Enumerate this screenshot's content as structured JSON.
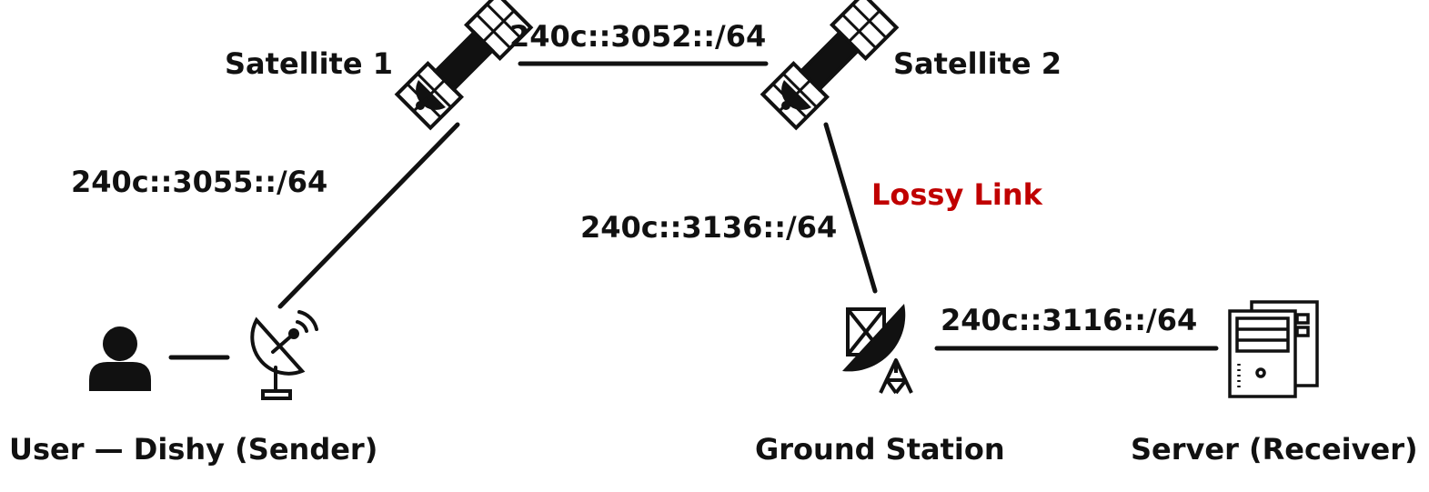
{
  "nodes": {
    "satellite_1": "Satellite 1",
    "satellite_2": "Satellite 2",
    "user_dishy": "User — Dishy (Sender)",
    "ground_station": "Ground Station",
    "server": "Server (Receiver)"
  },
  "links": {
    "sat1_sat2": "240c::3052::/64",
    "dishy_sat1": "240c::3055::/64",
    "sat2_ground": "240c::3136::/64",
    "ground_server": "240c::3116::/64",
    "lossy_note": "Lossy Link"
  },
  "colors": {
    "ink": "#111111",
    "lossy": "#c00000"
  },
  "icons": [
    "satellite-icon",
    "user-icon",
    "dish-antenna-icon",
    "ground-station-icon",
    "server-icon"
  ]
}
